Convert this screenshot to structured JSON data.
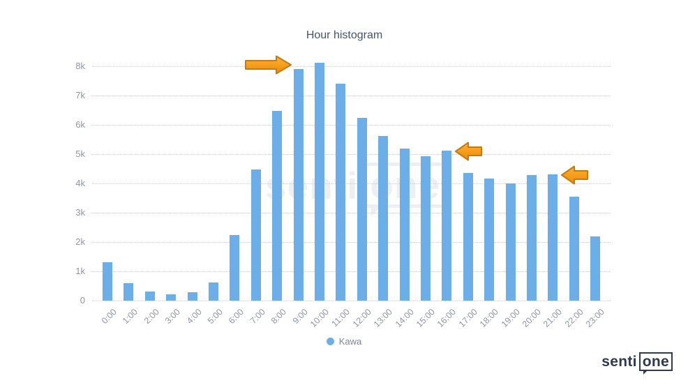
{
  "title": "Hour histogram",
  "chart_data": {
    "type": "bar",
    "title": "Hour histogram",
    "categories": [
      "0:00",
      "1:00",
      "2:00",
      "3:00",
      "4:00",
      "5:00",
      "6:00",
      "7:00",
      "8:00",
      "9:00",
      "10:00",
      "11:00",
      "12:00",
      "13:00",
      "14:00",
      "15:00",
      "16:00",
      "17:00",
      "18:00",
      "19:00",
      "20:00",
      "21:00",
      "22:00",
      "23:00"
    ],
    "series": [
      {
        "name": "Kawa",
        "color": "#6caee8",
        "values": [
          1300,
          600,
          300,
          220,
          290,
          620,
          2230,
          4470,
          6470,
          7900,
          8120,
          7400,
          6230,
          5610,
          5190,
          4930,
          5110,
          4350,
          4170,
          4010,
          4290,
          4300,
          3550,
          2180
        ]
      }
    ],
    "xlabel": "",
    "ylabel": "",
    "ylim": [
      0,
      8400
    ],
    "ytick_values": [
      0,
      1000,
      2000,
      3000,
      4000,
      5000,
      6000,
      7000,
      8000
    ],
    "ytick_labels": [
      "0",
      "1k",
      "2k",
      "3k",
      "4k",
      "5k",
      "6k",
      "7k",
      "8k"
    ],
    "grid": "horizontal-dotted",
    "legend_position": "bottom-center",
    "annotation_color": "#f5a623",
    "annotations": [
      {
        "type": "arrow",
        "direction": "right",
        "target_category": "9:00"
      },
      {
        "type": "arrow",
        "direction": "left",
        "target_category": "16:00"
      },
      {
        "type": "arrow",
        "direction": "left",
        "target_category": "21:00"
      }
    ]
  },
  "legend": {
    "label": "Kawa",
    "dot_color": "#6caee8"
  },
  "watermark": {
    "text_left": "senti",
    "text_boxed": "one"
  },
  "logo": {
    "text_left": "senti",
    "text_boxed": "one"
  },
  "colors": {
    "bar": "#6caee8",
    "title_text": "#44546c",
    "axis_text": "#8d95a5",
    "gridline": "#c9ccd4",
    "arrow_fill": "#f5a623",
    "arrow_stroke": "#c8790a",
    "logo_navy": "#2c3a52"
  }
}
